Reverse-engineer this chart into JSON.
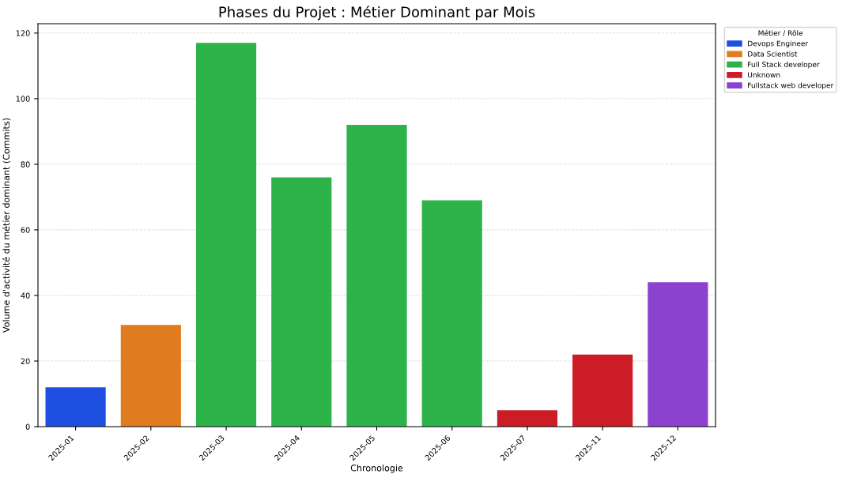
{
  "chart_data": {
    "type": "bar",
    "title": "Phases du Projet : Métier Dominant par Mois",
    "xlabel": "Chronologie",
    "ylabel": "Volume d'activité du métier dominant (Commits)",
    "categories": [
      "2025-01",
      "2025-02",
      "2025-03",
      "2025-04",
      "2025-05",
      "2025-06",
      "2025-07",
      "2025-11",
      "2025-12"
    ],
    "series": [
      {
        "name": "Devops Engineer",
        "color": "#1f4fe0",
        "values": [
          12,
          null,
          null,
          null,
          null,
          null,
          null,
          null,
          null
        ]
      },
      {
        "name": "Data Scientist",
        "color": "#e07b1f",
        "values": [
          null,
          31,
          null,
          null,
          null,
          null,
          null,
          null,
          null
        ]
      },
      {
        "name": "Full Stack developer",
        "color": "#2db34a",
        "values": [
          null,
          null,
          117,
          76,
          92,
          69,
          null,
          null,
          null
        ]
      },
      {
        "name": "Unknown",
        "color": "#cc1c25",
        "values": [
          null,
          null,
          null,
          null,
          null,
          null,
          5,
          22,
          null
        ]
      },
      {
        "name": "Fullstack web developer",
        "color": "#8a42cf",
        "values": [
          null,
          null,
          null,
          null,
          null,
          null,
          null,
          null,
          44
        ]
      }
    ],
    "legend_title": "Métier / Rôle",
    "legend": "top right",
    "ylim": [
      0,
      122.85
    ],
    "yticks": [
      0,
      20,
      40,
      60,
      80,
      100,
      120
    ],
    "grid": "y"
  }
}
